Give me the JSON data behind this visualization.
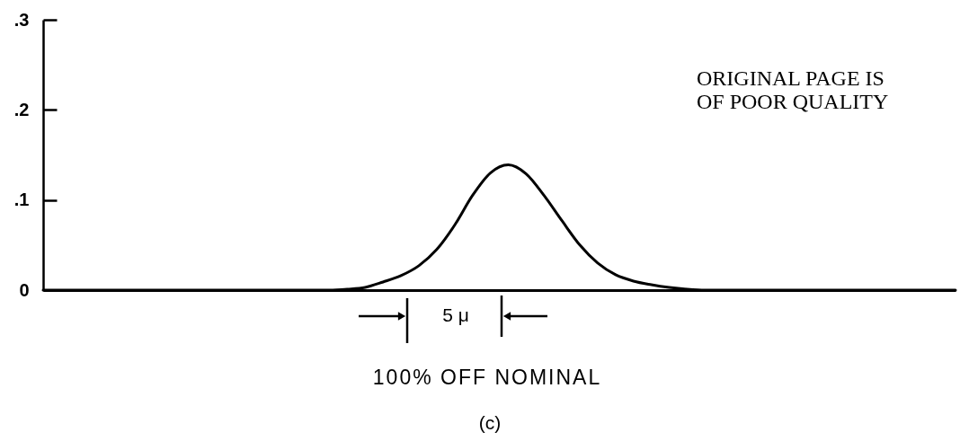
{
  "chart_data": {
    "type": "line",
    "xlabel": "100% OFF NOMINAL",
    "categories": [
      null,
      null,
      null,
      null,
      null,
      null,
      null,
      null,
      null,
      null,
      null,
      null,
      null,
      null,
      null,
      null,
      null,
      null,
      null,
      null,
      null,
      null,
      null,
      null,
      null,
      null,
      null,
      null,
      null,
      null,
      null,
      null,
      null,
      null,
      null,
      null,
      null,
      null,
      null,
      null,
      null,
      null,
      null,
      null,
      null,
      null,
      null,
      null,
      null,
      null,
      null,
      null
    ],
    "values": [
      0,
      0,
      0,
      0,
      0,
      0,
      0,
      0,
      0,
      0,
      0,
      0,
      0,
      0,
      0,
      0,
      0,
      0.001,
      0.003,
      0.009,
      0.016,
      0.027,
      0.045,
      0.072,
      0.105,
      0.13,
      0.139,
      0.129,
      0.105,
      0.077,
      0.05,
      0.03,
      0.017,
      0.01,
      0.006,
      0.003,
      0.001,
      0,
      0,
      0,
      0,
      0,
      0,
      0,
      0,
      0,
      0,
      0,
      0,
      0,
      0,
      0
    ],
    "color": "#000000",
    "ylim": [
      0,
      0.3
    ],
    "yticks": [
      0,
      {
        "value": 0.1,
        "label": ".1"
      },
      {
        "value": 0.2,
        "label": ".2"
      },
      {
        "value": 0.3,
        "label": ".3"
      }
    ],
    "tick_labels": "y",
    "annotations": [
      "5 μ",
      "ORIGINAL PAGE IS",
      "OF POOR QUALITY",
      "(c)"
    ]
  }
}
